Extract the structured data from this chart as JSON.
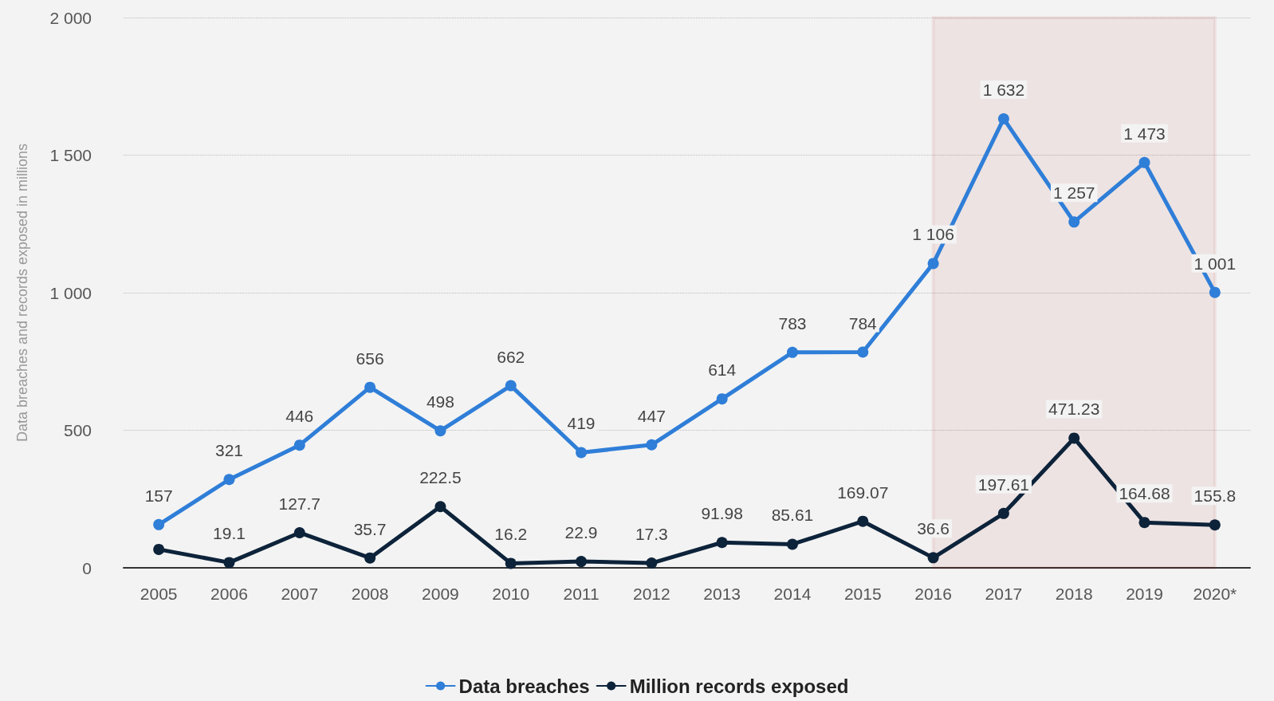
{
  "chart_data": {
    "type": "line",
    "ylabel": "Data breaches and records exposed in millions",
    "categories": [
      "2005",
      "2006",
      "2007",
      "2008",
      "2009",
      "2010",
      "2011",
      "2012",
      "2013",
      "2014",
      "2015",
      "2016",
      "2017",
      "2018",
      "2019",
      "2020*"
    ],
    "series": [
      {
        "name": "Data breaches",
        "color": "#2f7ed8",
        "values": [
          157,
          321,
          446,
          656,
          498,
          662,
          419,
          447,
          614,
          783,
          784,
          1106,
          1632,
          1257,
          1473,
          1001
        ],
        "value_labels": [
          "157",
          "321",
          "446",
          "656",
          "498",
          "662",
          "419",
          "447",
          "614",
          "783",
          "784",
          "1 106",
          "1 632",
          "1 257",
          "1 473",
          "1 001"
        ]
      },
      {
        "name": "Million records exposed",
        "color": "#0d233a",
        "values": [
          67,
          19.1,
          127.7,
          35.7,
          222.5,
          16.2,
          22.9,
          17.3,
          91.98,
          85.61,
          169.07,
          36.6,
          197.61,
          471.23,
          164.68,
          155.8
        ],
        "value_labels": [
          null,
          "19.1",
          "127.7",
          "35.7",
          "222.5",
          "16.2",
          "22.9",
          "17.3",
          "91.98",
          "85.61",
          "169.07",
          "36.6",
          "197.61",
          "471.23",
          "164.68",
          "155.8"
        ]
      }
    ],
    "ylim": [
      0,
      2000
    ],
    "yticks": [
      {
        "value": 0,
        "label": "0"
      },
      {
        "value": 500,
        "label": "500"
      },
      {
        "value": 1000,
        "label": "1 000"
      },
      {
        "value": 1500,
        "label": "1 500"
      },
      {
        "value": 2000,
        "label": "2 000"
      }
    ],
    "grid": "y",
    "legend": "bottom",
    "marker": "circle",
    "line_style": "solid",
    "bands": [
      {
        "axis": "x",
        "from": "2016",
        "to": "2020*",
        "color": "#b11a0f"
      }
    ]
  }
}
